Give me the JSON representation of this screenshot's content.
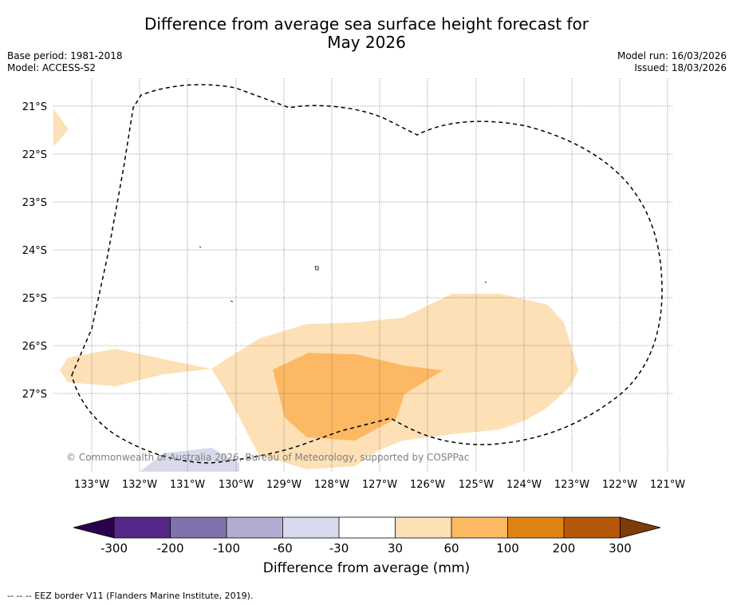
{
  "title": {
    "line1": "Difference from average sea surface height forecast for",
    "line2": "May 2026"
  },
  "meta": {
    "base_period": "Base period: 1981-2018",
    "model": "Model: ACCESS-S2",
    "model_run": "Model run: 16/03/2026",
    "issued": "Issued: 18/03/2026"
  },
  "map": {
    "lat_labels": [
      "21°S",
      "22°S",
      "23°S",
      "24°S",
      "25°S",
      "26°S",
      "27°S"
    ],
    "lon_labels": [
      "133°W",
      "132°W",
      "131°W",
      "130°W",
      "129°W",
      "128°W",
      "127°W",
      "126°W",
      "125°W",
      "124°W",
      "123°W",
      "122°W",
      "121°W"
    ],
    "copyright": "© Commonwealth of Australia 2026, Bureau of Meteorology, supported by COSPPac"
  },
  "colorbar": {
    "ticks": [
      "-300",
      "-200",
      "-100",
      "-60",
      "-30",
      "30",
      "60",
      "100",
      "200",
      "300"
    ],
    "colors": [
      "#2d004b",
      "#542788",
      "#8073ac",
      "#b2abd2",
      "#d8daeb",
      "#ffffff",
      "#fee0b6",
      "#fdb863",
      "#e08214",
      "#b35806",
      "#7f3b08"
    ],
    "label": "Difference from average (mm)"
  },
  "eez_note": "--  --  -- EEZ border V11 (Flanders Marine Institute, 2019)."
}
